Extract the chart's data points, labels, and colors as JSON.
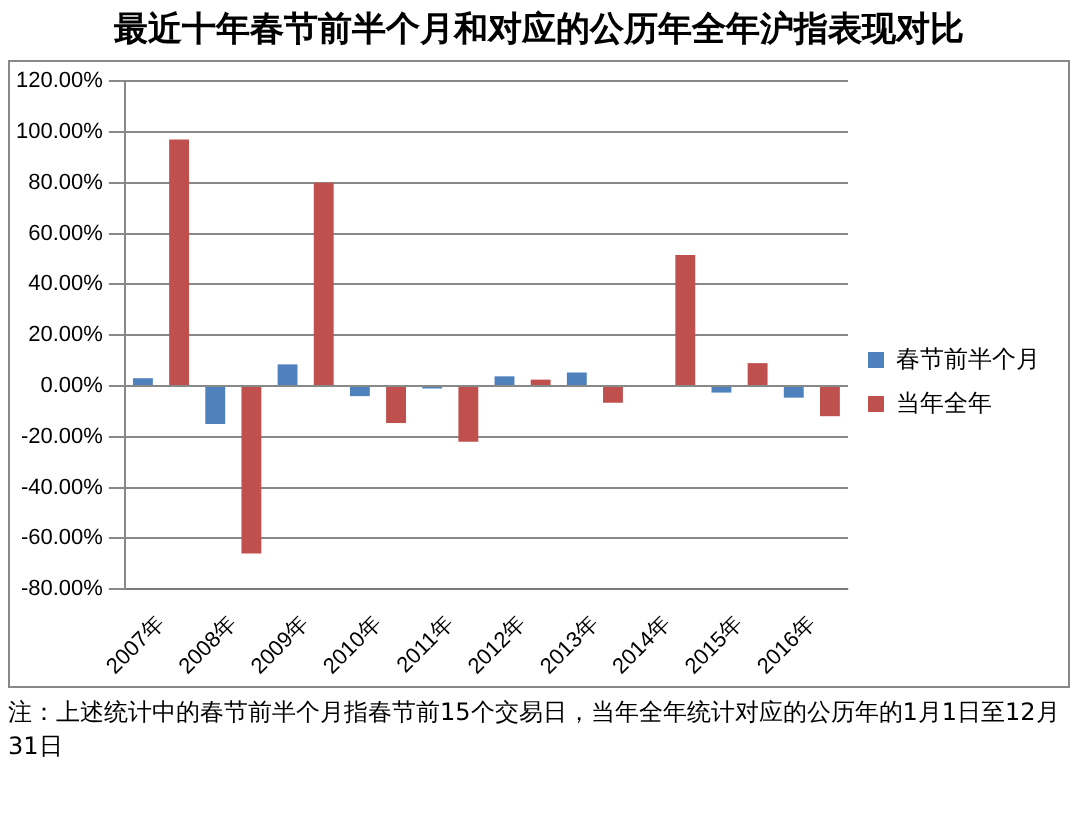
{
  "chart_data": {
    "type": "bar",
    "title": "最近十年春节前半个月和对应的公历年全年沪指表现对比",
    "categories": [
      "2007年",
      "2008年",
      "2009年",
      "2010年",
      "2011年",
      "2012年",
      "2013年",
      "2014年",
      "2015年",
      "2016年"
    ],
    "series": [
      {
        "name": "春节前半个月",
        "color": "#4f81bd",
        "values": [
          3,
          -15,
          8.5,
          -4,
          -1,
          3.8,
          5.3,
          0,
          -2.6,
          -4.6
        ]
      },
      {
        "name": "当年全年",
        "color": "#c0504d",
        "values": [
          97,
          -66,
          80,
          -14.6,
          -22,
          2.5,
          -6.6,
          51.6,
          9,
          -11.9
        ]
      }
    ],
    "ylim": [
      -80,
      120
    ],
    "yticks": [
      {
        "value": -80,
        "label": "-80.00%"
      },
      {
        "value": -60,
        "label": "-60.00%"
      },
      {
        "value": -40,
        "label": "-40.00%"
      },
      {
        "value": -20,
        "label": "-20.00%"
      },
      {
        "value": 0,
        "label": "0.00%"
      },
      {
        "value": 20,
        "label": "20.00%"
      },
      {
        "value": 40,
        "label": "40.00%"
      },
      {
        "value": 60,
        "label": "60.00%"
      },
      {
        "value": 80,
        "label": "80.00%"
      },
      {
        "value": 100,
        "label": "100.00%"
      },
      {
        "value": 120,
        "label": "120.00%"
      }
    ],
    "grid": "y",
    "legend": "right",
    "annotations": [
      "注：上述统计中的春节前半个月指春节前15个交易日，当年全年统计对应的公历年的1月1日至12月31日"
    ]
  }
}
